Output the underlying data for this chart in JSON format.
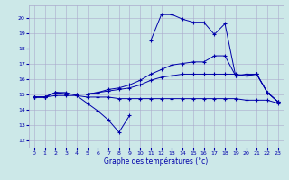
{
  "xlabel": "Graphe des températures (°c)",
  "bg_color": "#cce8e8",
  "grid_color": "#aaaacc",
  "line_color": "#0000aa",
  "xlim": [
    -0.5,
    23.5
  ],
  "ylim": [
    11.5,
    20.8
  ],
  "yticks": [
    12,
    13,
    14,
    15,
    16,
    17,
    18,
    19,
    20
  ],
  "xticks": [
    0,
    1,
    2,
    3,
    4,
    5,
    6,
    7,
    8,
    9,
    10,
    11,
    12,
    13,
    14,
    15,
    16,
    17,
    18,
    19,
    20,
    21,
    22,
    23
  ],
  "series": [
    {
      "x": [
        0,
        1,
        2,
        3,
        4,
        5,
        6,
        7,
        8,
        9
      ],
      "y": [
        14.8,
        14.8,
        15.1,
        15.1,
        14.9,
        14.4,
        13.9,
        13.3,
        12.5,
        13.6
      ]
    },
    {
      "x": [
        0,
        1,
        2,
        3,
        4,
        5,
        6,
        7,
        8,
        9,
        10,
        11,
        12,
        13,
        14,
        15,
        16,
        17,
        18,
        19,
        20,
        21,
        22,
        23
      ],
      "y": [
        14.8,
        14.8,
        14.9,
        14.9,
        14.9,
        14.8,
        14.8,
        14.8,
        14.7,
        14.7,
        14.7,
        14.7,
        14.7,
        14.7,
        14.7,
        14.7,
        14.7,
        14.7,
        14.7,
        14.7,
        14.6,
        14.6,
        14.6,
        14.4
      ]
    },
    {
      "x": [
        0,
        1,
        2,
        3,
        4,
        5,
        6,
        7,
        8,
        9,
        10,
        11,
        12,
        13,
        14,
        15,
        16,
        17,
        18,
        19,
        20,
        21,
        22,
        23
      ],
      "y": [
        14.8,
        14.8,
        15.1,
        15.0,
        15.0,
        15.0,
        15.1,
        15.2,
        15.3,
        15.4,
        15.6,
        15.9,
        16.1,
        16.2,
        16.3,
        16.3,
        16.3,
        16.3,
        16.3,
        16.3,
        16.2,
        16.3,
        15.1,
        14.5
      ]
    },
    {
      "x": [
        0,
        1,
        2,
        3,
        4,
        5,
        6,
        7,
        8,
        9,
        10,
        11,
        12,
        13,
        14,
        15,
        16,
        17,
        18,
        19,
        20,
        21,
        22,
        23
      ],
      "y": [
        14.8,
        14.8,
        15.1,
        15.0,
        15.0,
        15.0,
        15.1,
        15.3,
        15.4,
        15.6,
        15.9,
        16.3,
        16.6,
        16.9,
        17.0,
        17.1,
        17.1,
        17.5,
        17.5,
        16.2,
        16.3,
        16.3,
        15.1,
        14.5
      ]
    },
    {
      "x": [
        11,
        12,
        13,
        14,
        15,
        16,
        17,
        18,
        19,
        20,
        21,
        22,
        23
      ],
      "y": [
        18.5,
        20.2,
        20.2,
        19.9,
        19.7,
        19.7,
        18.9,
        19.6,
        16.2,
        16.2,
        16.3,
        15.1,
        14.5
      ]
    }
  ]
}
